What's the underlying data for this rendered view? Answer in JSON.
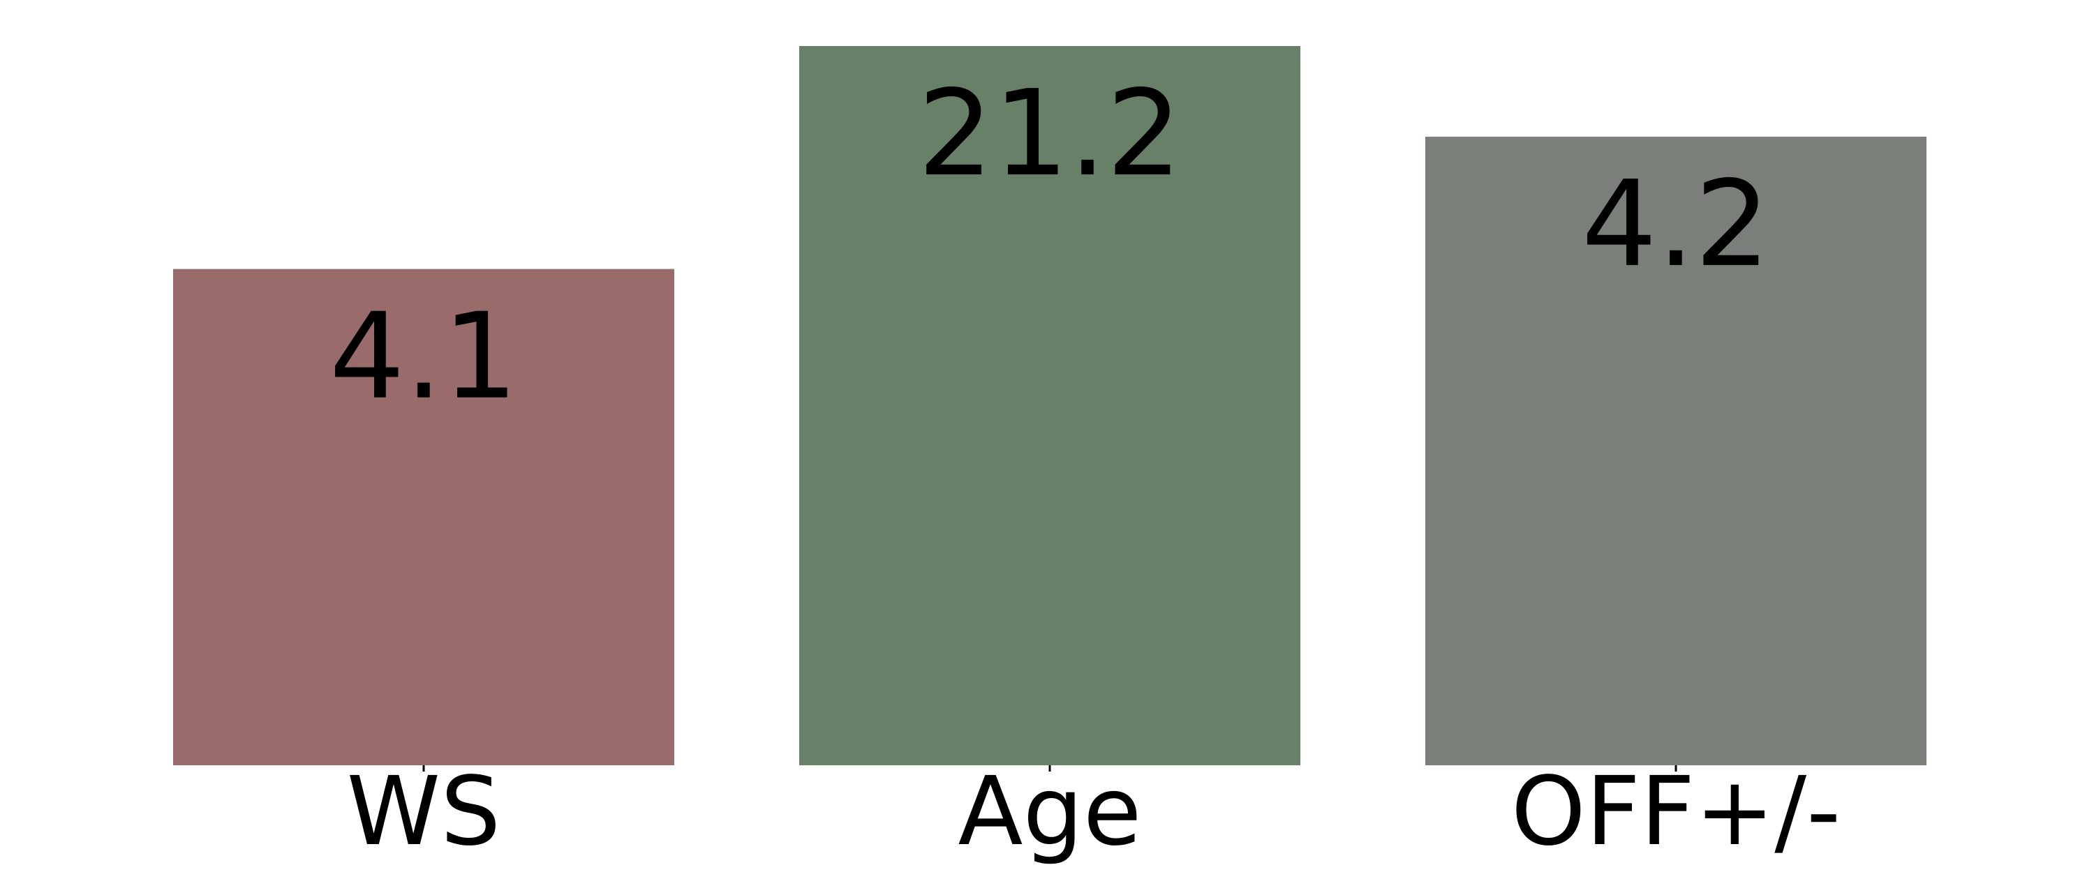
{
  "chart_data": {
    "type": "bar",
    "title": "",
    "xlabel": "",
    "ylabel": "",
    "categories": [
      "WS",
      "Age",
      "OFF+/-"
    ],
    "value_labels": [
      "4.1",
      "21.2",
      "4.2"
    ],
    "relative_heights": [
      0.69,
      1.0,
      0.874
    ],
    "colors": [
      "#996b6b",
      "#688068",
      "#7b7f79"
    ],
    "grid": false,
    "legend": "none",
    "y_axis_visible": false,
    "note": "Bar heights are individually normalized per category; labels show the raw values."
  }
}
